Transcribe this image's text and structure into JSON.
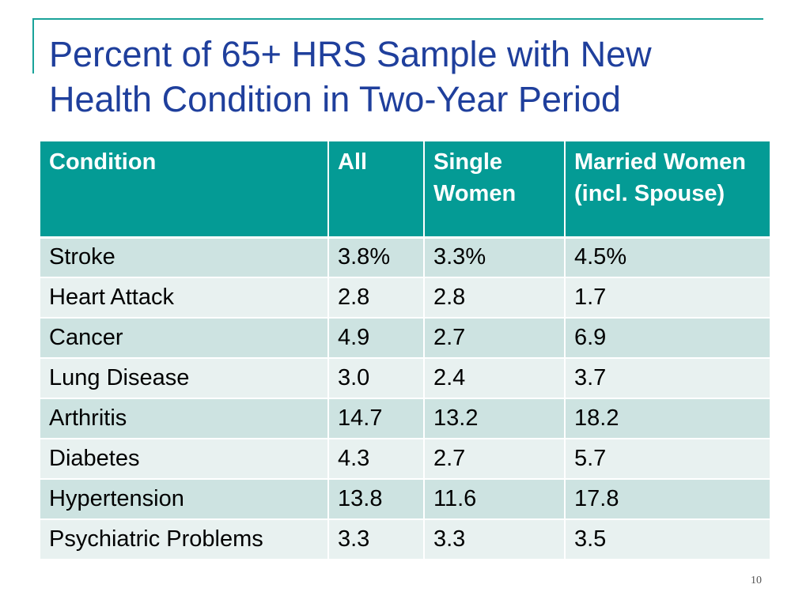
{
  "slide": {
    "title": "Percent of 65+ HRS Sample with New Health Condition in Two-Year Period",
    "page_number": "10"
  },
  "table": {
    "headers": [
      "Condition",
      "All",
      "Single Women",
      "Married Women (incl. Spouse)"
    ],
    "rows": [
      [
        "Stroke",
        "3.8%",
        "3.3%",
        "4.5%"
      ],
      [
        "Heart Attack",
        "2.8",
        "2.8",
        "1.7"
      ],
      [
        "Cancer",
        "4.9",
        "2.7",
        "6.9"
      ],
      [
        "Lung Disease",
        "3.0",
        "2.4",
        "3.7"
      ],
      [
        "Arthritis",
        "14.7",
        "13.2",
        "18.2"
      ],
      [
        "Diabetes",
        "4.3",
        "2.7",
        "5.7"
      ],
      [
        "Hypertension",
        "13.8",
        "11.6",
        "17.8"
      ],
      [
        "Psychiatric Problems",
        "3.3",
        "3.3",
        "3.5"
      ]
    ]
  },
  "colors": {
    "accent": "#1aa39a",
    "header_bg": "#049b95",
    "title": "#1f3f9c",
    "row_odd": "#cde3e1",
    "row_even": "#e8f1f0"
  }
}
